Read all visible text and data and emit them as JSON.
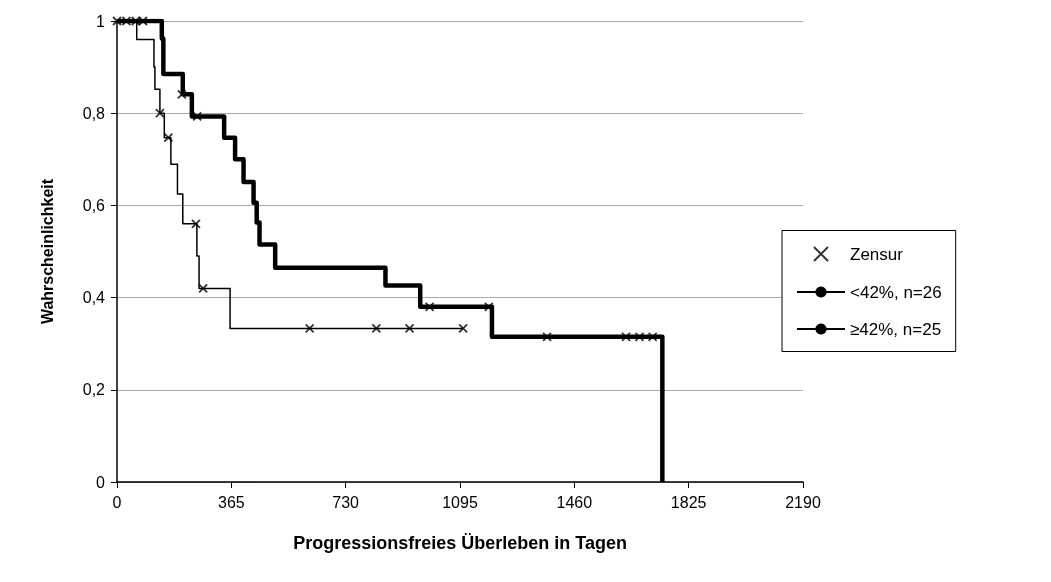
{
  "chart_data": {
    "type": "step",
    "xlabel": "Progressionsfreies Überleben in Tagen",
    "ylabel": "Wahrscheinlichkeit",
    "xlim": [
      0,
      2190
    ],
    "xticks": [
      0,
      365,
      730,
      1095,
      1460,
      1825,
      2190
    ],
    "ylim": [
      0,
      1
    ],
    "yticks": [
      0,
      {
        "value": 0.2,
        "label": "0,2"
      },
      {
        "value": 0.4,
        "label": "0,4"
      },
      {
        "value": 0.6,
        "label": "0,6"
      },
      {
        "value": 0.8,
        "label": "0,8"
      },
      1
    ],
    "grid": "y",
    "legend": "right",
    "series": [
      {
        "name": "Zensur",
        "type": "scatter",
        "marker": "cross",
        "color": "#000000",
        "x": [
          0,
          30,
          60,
          83,
          207,
          256,
          998,
          1187,
          1373,
          1625,
          1668,
          1710,
          137,
          164,
          252,
          275,
          615,
          828,
          934,
          1105
        ],
        "values": [
          1,
          1,
          1,
          1,
          0.841,
          0.793,
          0.38,
          0.38,
          0.315,
          0.315,
          0.315,
          0.315,
          0.8,
          0.747,
          0.56,
          0.42,
          0.333,
          0.333,
          0.333,
          0.333
        ]
      },
      {
        "name": "<42%, n=26",
        "color": "#000000",
        "x": [
          0,
          143,
          148,
          210,
          239,
          342,
          377,
          404,
          436,
          446,
          455,
          505,
          857,
          968,
          1197,
          1741
        ],
        "values": [
          1,
          0.962,
          0.885,
          0.841,
          0.793,
          0.747,
          0.7,
          0.651,
          0.606,
          0.563,
          0.515,
          0.465,
          0.426,
          0.38,
          0.315,
          0
        ]
      },
      {
        "name": "≥42%, n=25",
        "color": "#000000",
        "x": [
          0,
          63,
          118,
          121,
          137,
          151,
          172,
          193,
          210,
          255,
          262,
          361,
          1105
        ],
        "values": [
          1,
          0.96,
          0.9,
          0.852,
          0.8,
          0.747,
          0.689,
          0.625,
          0.56,
          0.49,
          0.42,
          0.333,
          0.333
        ]
      }
    ]
  }
}
